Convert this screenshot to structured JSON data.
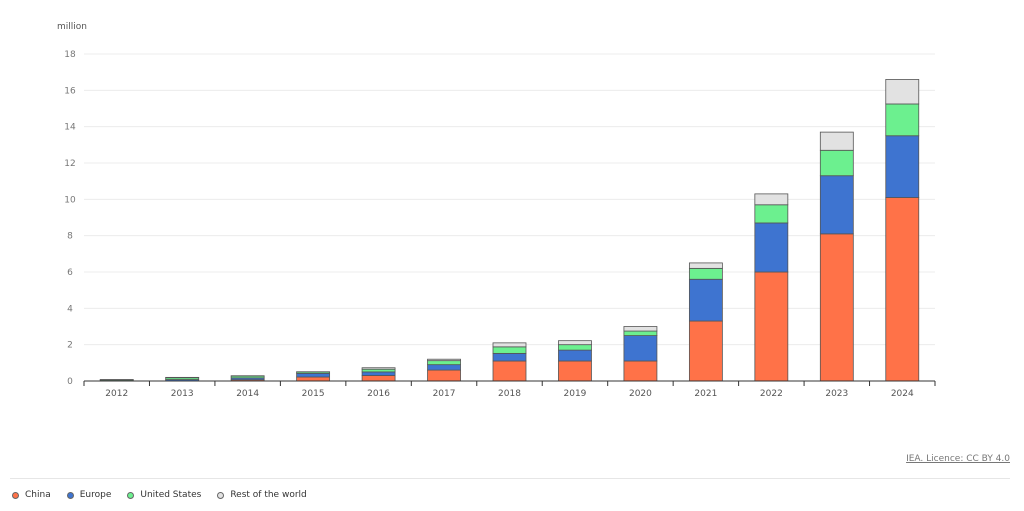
{
  "chart_data": {
    "type": "bar",
    "stacked": true,
    "ylabel": "million",
    "ylim": [
      0,
      18
    ],
    "yticks": [
      0,
      2,
      4,
      6,
      8,
      10,
      12,
      14,
      16,
      18
    ],
    "grid": true,
    "legend_position": "bottom-left",
    "categories": [
      "2012",
      "2013",
      "2014",
      "2015",
      "2016",
      "2017",
      "2018",
      "2019",
      "2020",
      "2021",
      "2022",
      "2023",
      "2024"
    ],
    "series": [
      {
        "name": "China",
        "color": "#ff7248",
        "values": [
          0.0,
          0.01,
          0.07,
          0.22,
          0.3,
          0.6,
          1.1,
          1.1,
          1.1,
          3.3,
          6.0,
          8.1,
          10.1
        ]
      },
      {
        "name": "Europe",
        "color": "#3e74d0",
        "values": [
          0.02,
          0.07,
          0.1,
          0.2,
          0.2,
          0.3,
          0.42,
          0.6,
          1.4,
          2.3,
          2.7,
          3.2,
          3.4
        ]
      },
      {
        "name": "United States",
        "color": "#6cf08f",
        "values": [
          0.05,
          0.1,
          0.1,
          0.08,
          0.15,
          0.22,
          0.36,
          0.3,
          0.25,
          0.6,
          1.0,
          1.4,
          1.75
        ]
      },
      {
        "name": "Rest of the world",
        "color": "#e2e2e2",
        "values": [
          0.01,
          0.02,
          0.02,
          0.01,
          0.08,
          0.08,
          0.22,
          0.22,
          0.25,
          0.3,
          0.6,
          1.0,
          1.35
        ]
      }
    ]
  },
  "source": "IEA. Licence: CC BY 4.0"
}
